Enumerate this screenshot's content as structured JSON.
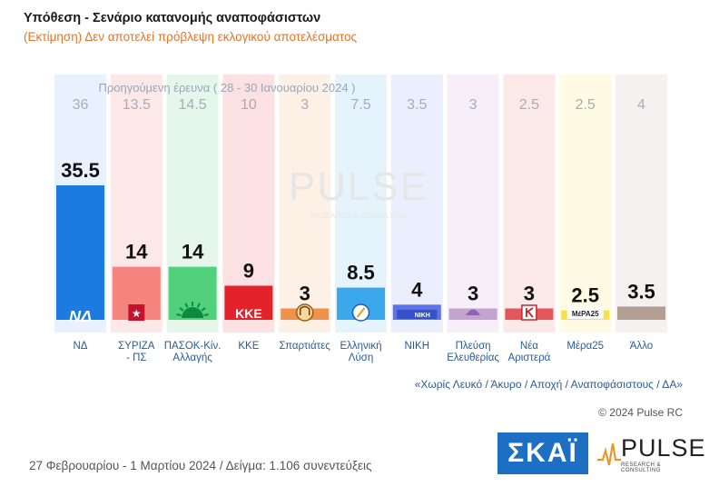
{
  "header": {
    "title": "Υπόθεση - Σενάριο κατανομής αναποφάσιστων",
    "subtitle": "(Εκτίμηση)   Δεν αποτελεί πρόβλεψη εκλογικού αποτελέσματος"
  },
  "chart_data": {
    "type": "bar",
    "categories": [
      "ΝΔ",
      "ΣΥΡΙΖΑ - ΠΣ",
      "ΠΑΣΟΚ-Κίν. Αλλαγής",
      "ΚΚΕ",
      "Σπαρτιάτες",
      "Ελληνική Λύση",
      "ΝΙΚΗ",
      "Πλεύση Ελευθερίας",
      "Νέα Αριστερά",
      "Μέρα25",
      "Άλλο"
    ],
    "category_lines": [
      [
        "ΝΔ"
      ],
      [
        "ΣΥΡΙΖΑ",
        "- ΠΣ"
      ],
      [
        "ΠΑΣΟΚ-Κίν.",
        "Αλλαγής"
      ],
      [
        "ΚΚΕ"
      ],
      [
        "Σπαρτιάτες"
      ],
      [
        "Ελληνική",
        "Λύση"
      ],
      [
        "ΝΙΚΗ"
      ],
      [
        "Πλεύση",
        "Ελευθερίας"
      ],
      [
        "Νέα",
        "Αριστερά"
      ],
      [
        "Μέρα25"
      ],
      [
        "Άλλο"
      ]
    ],
    "series": [
      {
        "values": [
          35.5,
          14,
          14,
          9,
          3,
          8.5,
          4,
          3,
          3,
          2.5,
          3.5
        ]
      },
      {
        "name": "Προηγούμενη έρευνα ( 28 - 30 Ιανουαρίου 2024 )",
        "values": [
          36,
          13.5,
          14.5,
          10,
          3,
          7.5,
          3.5,
          3,
          2.5,
          2.5,
          4
        ]
      }
    ],
    "value_labels": [
      "35.5",
      "14",
      "14",
      "9",
      "3",
      "8.5",
      "4",
      "3",
      "3",
      "2.5",
      "3.5"
    ],
    "previous_labels": [
      "36",
      "13.5",
      "14.5",
      "10",
      "3",
      "7.5",
      "3.5",
      "3",
      "2.5",
      "2.5",
      "4"
    ],
    "colors": [
      "#1c7be0",
      "#f5847f",
      "#52d07c",
      "#e4222b",
      "#f0924a",
      "#3aa8ea",
      "#5e73e6",
      "#c2a4cf",
      "#e3565b",
      "#f7e04a",
      "#b39e93"
    ],
    "background_colors": [
      "#e8f1fd",
      "#fce8e6",
      "#e5f7ea",
      "#fbe1e1",
      "#fdf0e5",
      "#e5f3fd",
      "#ebeffd",
      "#f6eef8",
      "#fbe8e9",
      "#fefbe4",
      "#f4f1f0"
    ],
    "ylim": [
      0,
      36
    ],
    "grid": false,
    "legend": "top"
  },
  "logos": [
    "nd-logo",
    "syriza-logo",
    "pasok-logo",
    "kke-logo",
    "spartiates-logo",
    "elliniki-lysi-logo",
    "niki-logo",
    "plefsi-logo",
    "nea-aristera-logo",
    "mera25-logo",
    "none"
  ],
  "logo_texts": {
    "nd": "ΝΔ",
    "kke": "ΚΚΕ",
    "niki": "ΝΙΚΗ",
    "mera25": "ΜέΡΑ25"
  },
  "watermark": {
    "brand": "PULSE",
    "tagline": "RESEARCH & CONSULTING"
  },
  "note": "«Χωρίς Λευκό / Άκυρο / Αποχή / Αναποφάσιστους / ΔΑ»",
  "copyright": "© 2024 Pulse RC",
  "footer": "27 Φεβρουαρίου - 1 Μαρτίου 2024  /  Δείγμα:  1.106 συνεντεύξεις",
  "brand": {
    "skai": "ΣΚΑΪ",
    "pulse": "PULSE",
    "pulse_sub": "RESEARCH & CONSULTING"
  }
}
